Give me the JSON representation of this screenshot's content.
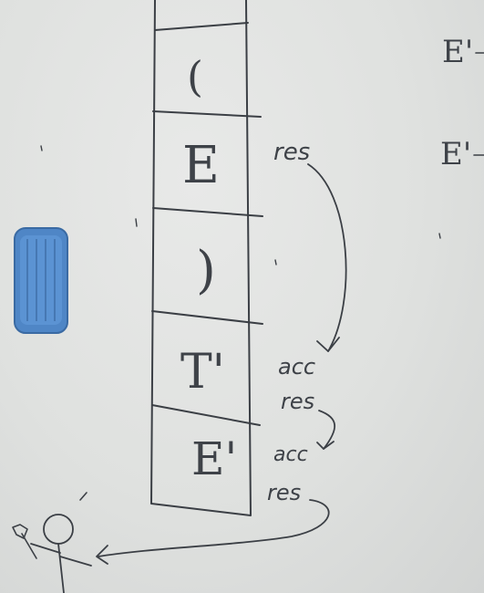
{
  "whiteboard": {
    "stack_cells": [
      "(",
      "E",
      ")",
      "T'",
      "E'"
    ],
    "edge_labels": {
      "res_top": "res",
      "acc_1": "acc",
      "res_2": "res",
      "acc_2": "acc",
      "res_3": "res"
    },
    "right_notes": [
      "E'",
      "E'"
    ],
    "eraser_color": "#4f86c6"
  }
}
